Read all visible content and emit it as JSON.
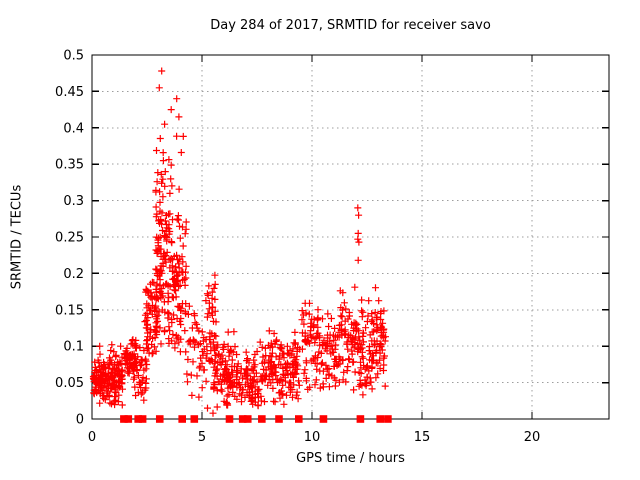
{
  "chart_data": {
    "type": "scatter",
    "title": "Day 284 of 2017, SRMTID for receiver savo",
    "xlabel": "GPS time / hours",
    "ylabel": "SRMTID / TECUs",
    "xlim": [
      0,
      23.5
    ],
    "ylim": [
      0,
      0.5
    ],
    "xticks": [
      0,
      5,
      10,
      15,
      20
    ],
    "xtick_labels": [
      "0",
      "5",
      "10",
      "15",
      "20"
    ],
    "yticks": [
      0,
      0.05,
      0.1,
      0.15,
      0.2,
      0.25,
      0.3,
      0.35,
      0.4,
      0.45,
      0.5
    ],
    "ytick_labels": [
      "0",
      "0.05",
      "0.1",
      "0.15",
      "0.2",
      "0.25",
      "0.3",
      "0.35",
      "0.4",
      "0.45",
      "0.5"
    ],
    "grid": true,
    "legend": "none",
    "series_name": "SRMTID",
    "marker": {
      "symbol": "plus",
      "color": "#ff0000",
      "size": 7
    },
    "x_data_range": [
      0,
      13.5
    ],
    "y_data_max": 0.478,
    "distribution_clusters": [
      {
        "n": 180,
        "t": [
          0.05,
          1.4
        ],
        "v_mean": 0.055,
        "v_sd": 0.016,
        "v_min": 0.018,
        "v_max": 0.098
      },
      {
        "n": 50,
        "t": [
          1.45,
          2.05
        ],
        "v_mean": 0.082,
        "v_sd": 0.015,
        "v_min": 0.045,
        "v_max": 0.115
      },
      {
        "n": 45,
        "t": [
          1.85,
          2.5
        ],
        "v_mean": 0.06,
        "v_sd": 0.02,
        "v_min": 0.025,
        "v_max": 0.105
      },
      {
        "n": 65,
        "t": [
          2.4,
          2.95
        ],
        "v_mean": 0.14,
        "v_sd": 0.035,
        "v_min": 0.07,
        "v_max": 0.225
      },
      {
        "n": 115,
        "t": [
          2.9,
          3.5
        ],
        "v_mean": 0.21,
        "v_sd": 0.075,
        "v_min": 0.1,
        "v_max": 0.43
      },
      {
        "n": 105,
        "t": [
          3.5,
          4.3
        ],
        "v_mean": 0.2,
        "v_sd": 0.075,
        "v_min": 0.09,
        "v_max": 0.44
      },
      {
        "n": 40,
        "t": [
          4.3,
          5.15
        ],
        "v_mean": 0.09,
        "v_sd": 0.035,
        "v_min": 0.03,
        "v_max": 0.175
      },
      {
        "n": 45,
        "t": [
          5.15,
          5.65
        ],
        "v_mean": 0.12,
        "v_sd": 0.04,
        "v_min": 0.05,
        "v_max": 0.2
      },
      {
        "n": 95,
        "t": [
          5.5,
          6.55
        ],
        "v_mean": 0.06,
        "v_sd": 0.025,
        "v_min": 0.015,
        "v_max": 0.125
      },
      {
        "n": 85,
        "t": [
          6.55,
          7.6
        ],
        "v_mean": 0.05,
        "v_sd": 0.02,
        "v_min": 0.015,
        "v_max": 0.115
      },
      {
        "n": 150,
        "t": [
          7.6,
          9.45
        ],
        "v_mean": 0.065,
        "v_sd": 0.025,
        "v_min": 0.02,
        "v_max": 0.15
      },
      {
        "n": 60,
        "t": [
          9.5,
          10.3
        ],
        "v_mean": 0.105,
        "v_sd": 0.04,
        "v_min": 0.04,
        "v_max": 0.185
      },
      {
        "n": 70,
        "t": [
          10.3,
          11.25
        ],
        "v_mean": 0.085,
        "v_sd": 0.03,
        "v_min": 0.035,
        "v_max": 0.155
      },
      {
        "n": 175,
        "t": [
          11.25,
          13.35
        ],
        "v_mean": 0.105,
        "v_sd": 0.03,
        "v_min": 0.04,
        "v_max": 0.19
      },
      {
        "n": 12,
        "t": [
          12.1,
          12.7
        ],
        "v_mean": 0.05,
        "v_sd": 0.015,
        "v_min": 0.025,
        "v_max": 0.08
      }
    ],
    "outlier_points": [
      [
        3.17,
        0.478
      ],
      [
        3.06,
        0.455
      ],
      [
        3.85,
        0.44
      ],
      [
        3.6,
        0.425
      ],
      [
        3.95,
        0.415
      ],
      [
        3.3,
        0.405
      ],
      [
        12.08,
        0.29
      ],
      [
        12.12,
        0.28
      ],
      [
        12.1,
        0.255
      ],
      [
        12.08,
        0.247
      ],
      [
        12.13,
        0.243
      ],
      [
        12.1,
        0.218
      ],
      [
        0.35,
        0.1
      ],
      [
        0.9,
        0.102
      ],
      [
        1.3,
        0.1
      ],
      [
        5.25,
        0.015
      ],
      [
        5.5,
        0.008
      ]
    ],
    "zero_time_clusters": [
      1.45,
      1.65,
      2.1,
      2.3,
      3.08,
      4.1,
      4.65,
      6.25,
      6.85,
      7.08,
      7.72,
      8.5,
      9.4,
      10.52,
      12.2,
      13.1,
      13.45
    ]
  },
  "colors": {
    "background": "#ffffff",
    "axis": "#000000",
    "grid": "#9e9e9e",
    "marker": "#ff0000",
    "text": "#000000"
  }
}
